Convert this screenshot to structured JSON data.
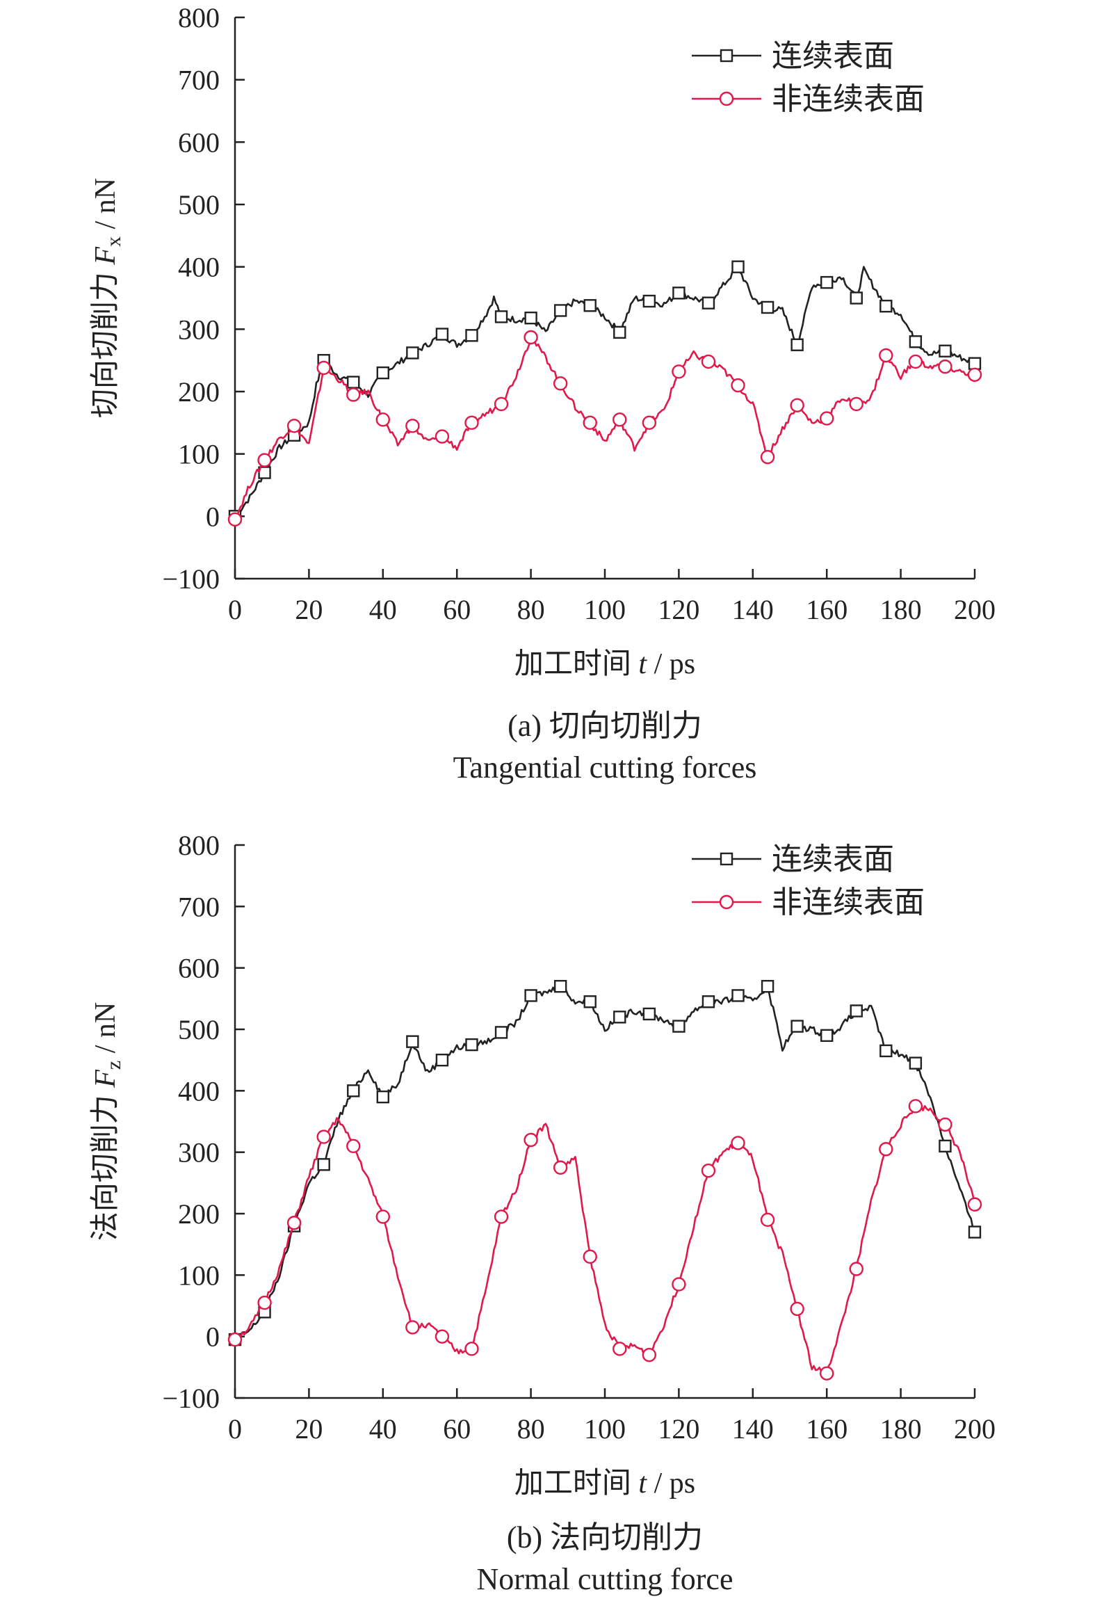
{
  "chart_data": [
    {
      "type": "line",
      "caption_line1": "(a) 切向切削力",
      "caption_line2": "Tangential cutting forces",
      "ylabel_prefix": "切向切削力 ",
      "ylabel_var": "F",
      "ylabel_sub": "x",
      "ylabel_suffix": " / nN",
      "xlabel_prefix": "加工时间 ",
      "xlabel_var": "t",
      "xlabel_suffix": " / ps",
      "xlim": [
        0,
        200
      ],
      "ylim": [
        -100,
        800
      ],
      "xticks": [
        "0",
        "20",
        "40",
        "60",
        "80",
        "100",
        "120",
        "140",
        "160",
        "180",
        "200"
      ],
      "yticks": [
        "−100",
        "0",
        "100",
        "200",
        "300",
        "400",
        "500",
        "600",
        "700",
        "800"
      ],
      "series": [
        {
          "name": "连续表面",
          "color": "#222222",
          "marker": "square",
          "x": [
            0,
            4,
            8,
            12,
            16,
            20,
            22,
            24,
            28,
            32,
            36,
            40,
            44,
            48,
            52,
            56,
            60,
            64,
            68,
            70,
            72,
            76,
            80,
            84,
            88,
            92,
            96,
            100,
            104,
            108,
            112,
            116,
            120,
            124,
            128,
            132,
            136,
            140,
            144,
            148,
            152,
            154,
            156,
            160,
            164,
            168,
            170,
            172,
            176,
            180,
            184,
            188,
            192,
            196,
            200
          ],
          "y": [
            0,
            30,
            70,
            110,
            130,
            150,
            210,
            250,
            225,
            215,
            195,
            230,
            245,
            262,
            275,
            292,
            275,
            290,
            325,
            350,
            320,
            315,
            318,
            295,
            330,
            345,
            338,
            320,
            295,
            350,
            345,
            340,
            358,
            350,
            342,
            370,
            400,
            350,
            335,
            330,
            275,
            320,
            370,
            375,
            385,
            350,
            395,
            375,
            337,
            325,
            280,
            260,
            265,
            255,
            245
          ]
        },
        {
          "name": "非连续表面",
          "color": "#e0194a",
          "marker": "circle",
          "x": [
            0,
            4,
            8,
            12,
            16,
            20,
            24,
            28,
            32,
            36,
            40,
            44,
            48,
            52,
            56,
            60,
            64,
            68,
            72,
            76,
            80,
            84,
            88,
            92,
            96,
            100,
            104,
            108,
            112,
            116,
            120,
            124,
            128,
            132,
            136,
            140,
            144,
            148,
            152,
            156,
            160,
            164,
            168,
            172,
            176,
            180,
            184,
            188,
            192,
            196,
            200
          ],
          "y": [
            -5,
            50,
            90,
            125,
            145,
            115,
            238,
            220,
            195,
            200,
            155,
            115,
            145,
            120,
            128,
            110,
            150,
            165,
            180,
            225,
            287,
            255,
            213,
            175,
            150,
            120,
            155,
            110,
            150,
            170,
            232,
            260,
            248,
            235,
            210,
            180,
            95,
            140,
            178,
            150,
            157,
            190,
            180,
            190,
            258,
            225,
            248,
            240,
            240,
            232,
            227
          ]
        }
      ],
      "marker_x_series0": [
        0,
        8,
        16,
        24,
        32,
        40,
        48,
        56,
        64,
        72,
        80,
        88,
        96,
        104,
        112,
        120,
        128,
        136,
        144,
        152,
        160,
        168,
        176,
        184,
        192,
        200
      ],
      "marker_x_series1": [
        0,
        8,
        16,
        24,
        32,
        40,
        48,
        56,
        64,
        72,
        80,
        88,
        96,
        104,
        112,
        120,
        128,
        136,
        144,
        152,
        160,
        168,
        176,
        184,
        192,
        200
      ],
      "legend_position": "top-right"
    },
    {
      "type": "line",
      "caption_line1": "(b) 法向切削力",
      "caption_line2": "Normal cutting force",
      "ylabel_prefix": "法向切削力 ",
      "ylabel_var": "F",
      "ylabel_sub": "z",
      "ylabel_suffix": " / nN",
      "xlabel_prefix": "加工时间 ",
      "xlabel_var": "t",
      "xlabel_suffix": " / ps",
      "xlim": [
        0,
        200
      ],
      "ylim": [
        -100,
        800
      ],
      "xticks": [
        "0",
        "20",
        "40",
        "60",
        "80",
        "100",
        "120",
        "140",
        "160",
        "180",
        "200"
      ],
      "yticks": [
        "−100",
        "0",
        "100",
        "200",
        "300",
        "400",
        "500",
        "600",
        "700",
        "800"
      ],
      "series": [
        {
          "name": "连续表面",
          "color": "#222222",
          "marker": "square",
          "x": [
            0,
            4,
            8,
            12,
            16,
            20,
            24,
            28,
            32,
            36,
            40,
            44,
            48,
            52,
            56,
            60,
            64,
            68,
            72,
            76,
            80,
            84,
            88,
            92,
            96,
            100,
            104,
            108,
            112,
            116,
            120,
            124,
            128,
            132,
            136,
            140,
            144,
            148,
            152,
            156,
            160,
            164,
            168,
            172,
            176,
            180,
            184,
            188,
            192,
            196,
            200
          ],
          "y": [
            -5,
            10,
            40,
            100,
            180,
            250,
            280,
            355,
            400,
            435,
            390,
            410,
            480,
            430,
            450,
            470,
            475,
            480,
            495,
            510,
            555,
            560,
            570,
            545,
            545,
            500,
            520,
            530,
            525,
            515,
            505,
            530,
            545,
            545,
            555,
            545,
            570,
            470,
            505,
            500,
            490,
            505,
            530,
            535,
            465,
            460,
            445,
            390,
            310,
            240,
            170
          ]
        },
        {
          "name": "非连续表面",
          "color": "#e0194a",
          "marker": "circle",
          "x": [
            0,
            4,
            8,
            12,
            16,
            20,
            24,
            28,
            32,
            36,
            40,
            44,
            48,
            52,
            56,
            60,
            64,
            68,
            72,
            76,
            80,
            84,
            88,
            92,
            96,
            100,
            104,
            108,
            112,
            116,
            120,
            124,
            128,
            132,
            136,
            140,
            144,
            148,
            152,
            156,
            160,
            164,
            168,
            172,
            176,
            180,
            184,
            188,
            192,
            196,
            200
          ],
          "y": [
            -5,
            15,
            55,
            110,
            185,
            260,
            325,
            355,
            310,
            255,
            195,
            100,
            15,
            20,
            0,
            -25,
            -20,
            80,
            195,
            240,
            320,
            345,
            275,
            290,
            130,
            20,
            -20,
            -15,
            -30,
            20,
            85,
            180,
            270,
            300,
            315,
            290,
            190,
            135,
            45,
            -50,
            -60,
            20,
            110,
            220,
            305,
            345,
            375,
            370,
            345,
            300,
            215
          ]
        }
      ],
      "marker_x_series0": [
        0,
        8,
        16,
        24,
        32,
        40,
        48,
        56,
        64,
        72,
        80,
        88,
        96,
        104,
        112,
        120,
        128,
        136,
        144,
        152,
        160,
        168,
        176,
        184,
        192,
        200
      ],
      "marker_x_series1": [
        0,
        8,
        16,
        24,
        32,
        40,
        48,
        56,
        64,
        72,
        80,
        88,
        96,
        104,
        112,
        120,
        128,
        136,
        144,
        152,
        160,
        168,
        176,
        184,
        192,
        200
      ],
      "legend_position": "top-right"
    }
  ]
}
